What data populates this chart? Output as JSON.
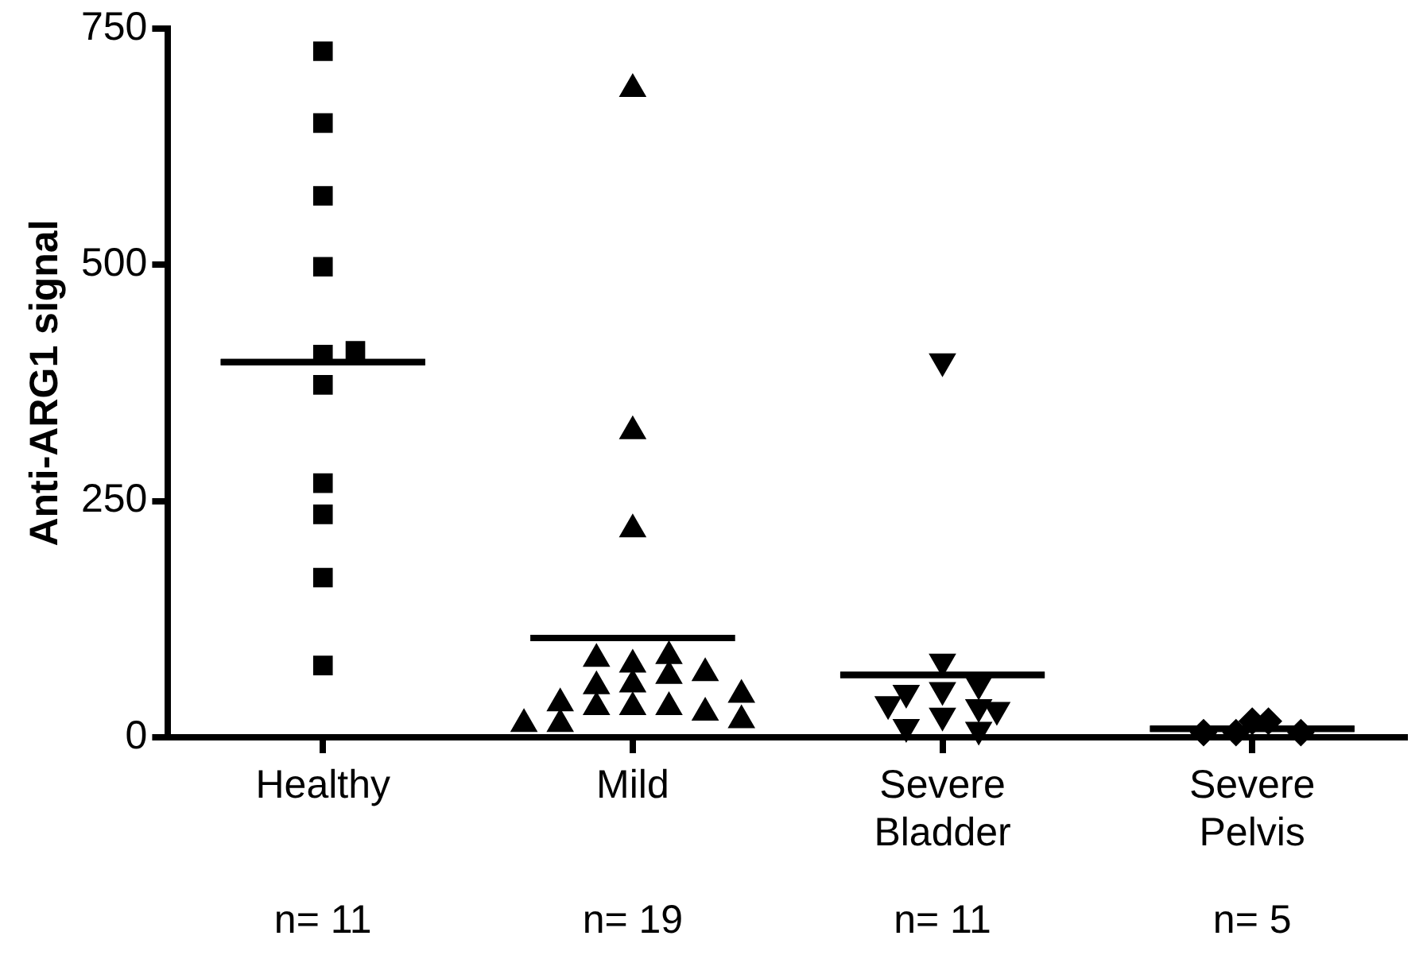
{
  "chart_data": {
    "type": "scatter",
    "ylabel": "Anti-ARG1 signal",
    "categories": [
      "Healthy",
      "Mild",
      "Severe Bladder",
      "Severe Pelvis"
    ],
    "series": [
      {
        "color": "#000000",
        "marker": "square",
        "x": [
          "Healthy",
          "Healthy",
          "Healthy",
          "Healthy",
          "Healthy",
          "Healthy",
          "Healthy",
          "Healthy",
          "Healthy",
          "Healthy",
          "Healthy"
        ],
        "values": [
          726,
          650,
          573,
          498,
          405,
          409,
          373,
          269,
          236,
          169,
          76
        ]
      },
      {
        "color": "#000000",
        "marker": "triangle",
        "x": [
          "Mild",
          "Mild",
          "Mild",
          "Mild",
          "Mild",
          "Mild",
          "Mild",
          "Mild",
          "Mild",
          "Mild",
          "Mild",
          "Mild",
          "Mild",
          "Mild",
          "Mild",
          "Mild",
          "Mild",
          "Mild",
          "Mild"
        ],
        "values": [
          686,
          324,
          220,
          77,
          86,
          83,
          68,
          65,
          56,
          54,
          32,
          32,
          32,
          26,
          36,
          14,
          18,
          14,
          45
        ]
      },
      {
        "color": "#000000",
        "x": [
          "Severe Bladder",
          "Severe Bladder",
          "Severe Bladder",
          "Severe Bladder",
          "Severe Bladder",
          "Severe Bladder",
          "Severe Bladder",
          "Severe Bladder",
          "Severe Bladder",
          "Severe Bladder",
          "Severe Bladder"
        ],
        "values": [
          398,
          80,
          50,
          56,
          47,
          32,
          23,
          29,
          35,
          8,
          11
        ]
      },
      {
        "color": "#000000",
        "marker": "diamond",
        "x": [
          "Severe Pelvis",
          "Severe Pelvis",
          "Severe Pelvis",
          "Severe Pelvis",
          "Severe Pelvis"
        ],
        "values": [
          17,
          17,
          5,
          5,
          5
        ]
      },
      {
        "type": "box",
        "color": "#000000",
        "boxes": [
          {
            "low": 397,
            "q1": 397,
            "median": 397,
            "q3": 397,
            "high": 397
          },
          {
            "low": 105,
            "q1": 105,
            "median": 105,
            "q3": 105,
            "high": 105
          },
          {
            "low": 66,
            "q1": 66,
            "median": 66,
            "q3": 66,
            "high": 66
          },
          {
            "low": 9,
            "q1": 9,
            "median": 9,
            "q3": 9,
            "high": 9
          }
        ]
      }
    ],
    "ylim": [
      0,
      750
    ],
    "yticks": [
      0,
      250,
      500,
      750
    ],
    "grid": false,
    "legend": false,
    "annotations": [
      "n= 11",
      "n= 19",
      "n= 11",
      "n= 5"
    ]
  }
}
